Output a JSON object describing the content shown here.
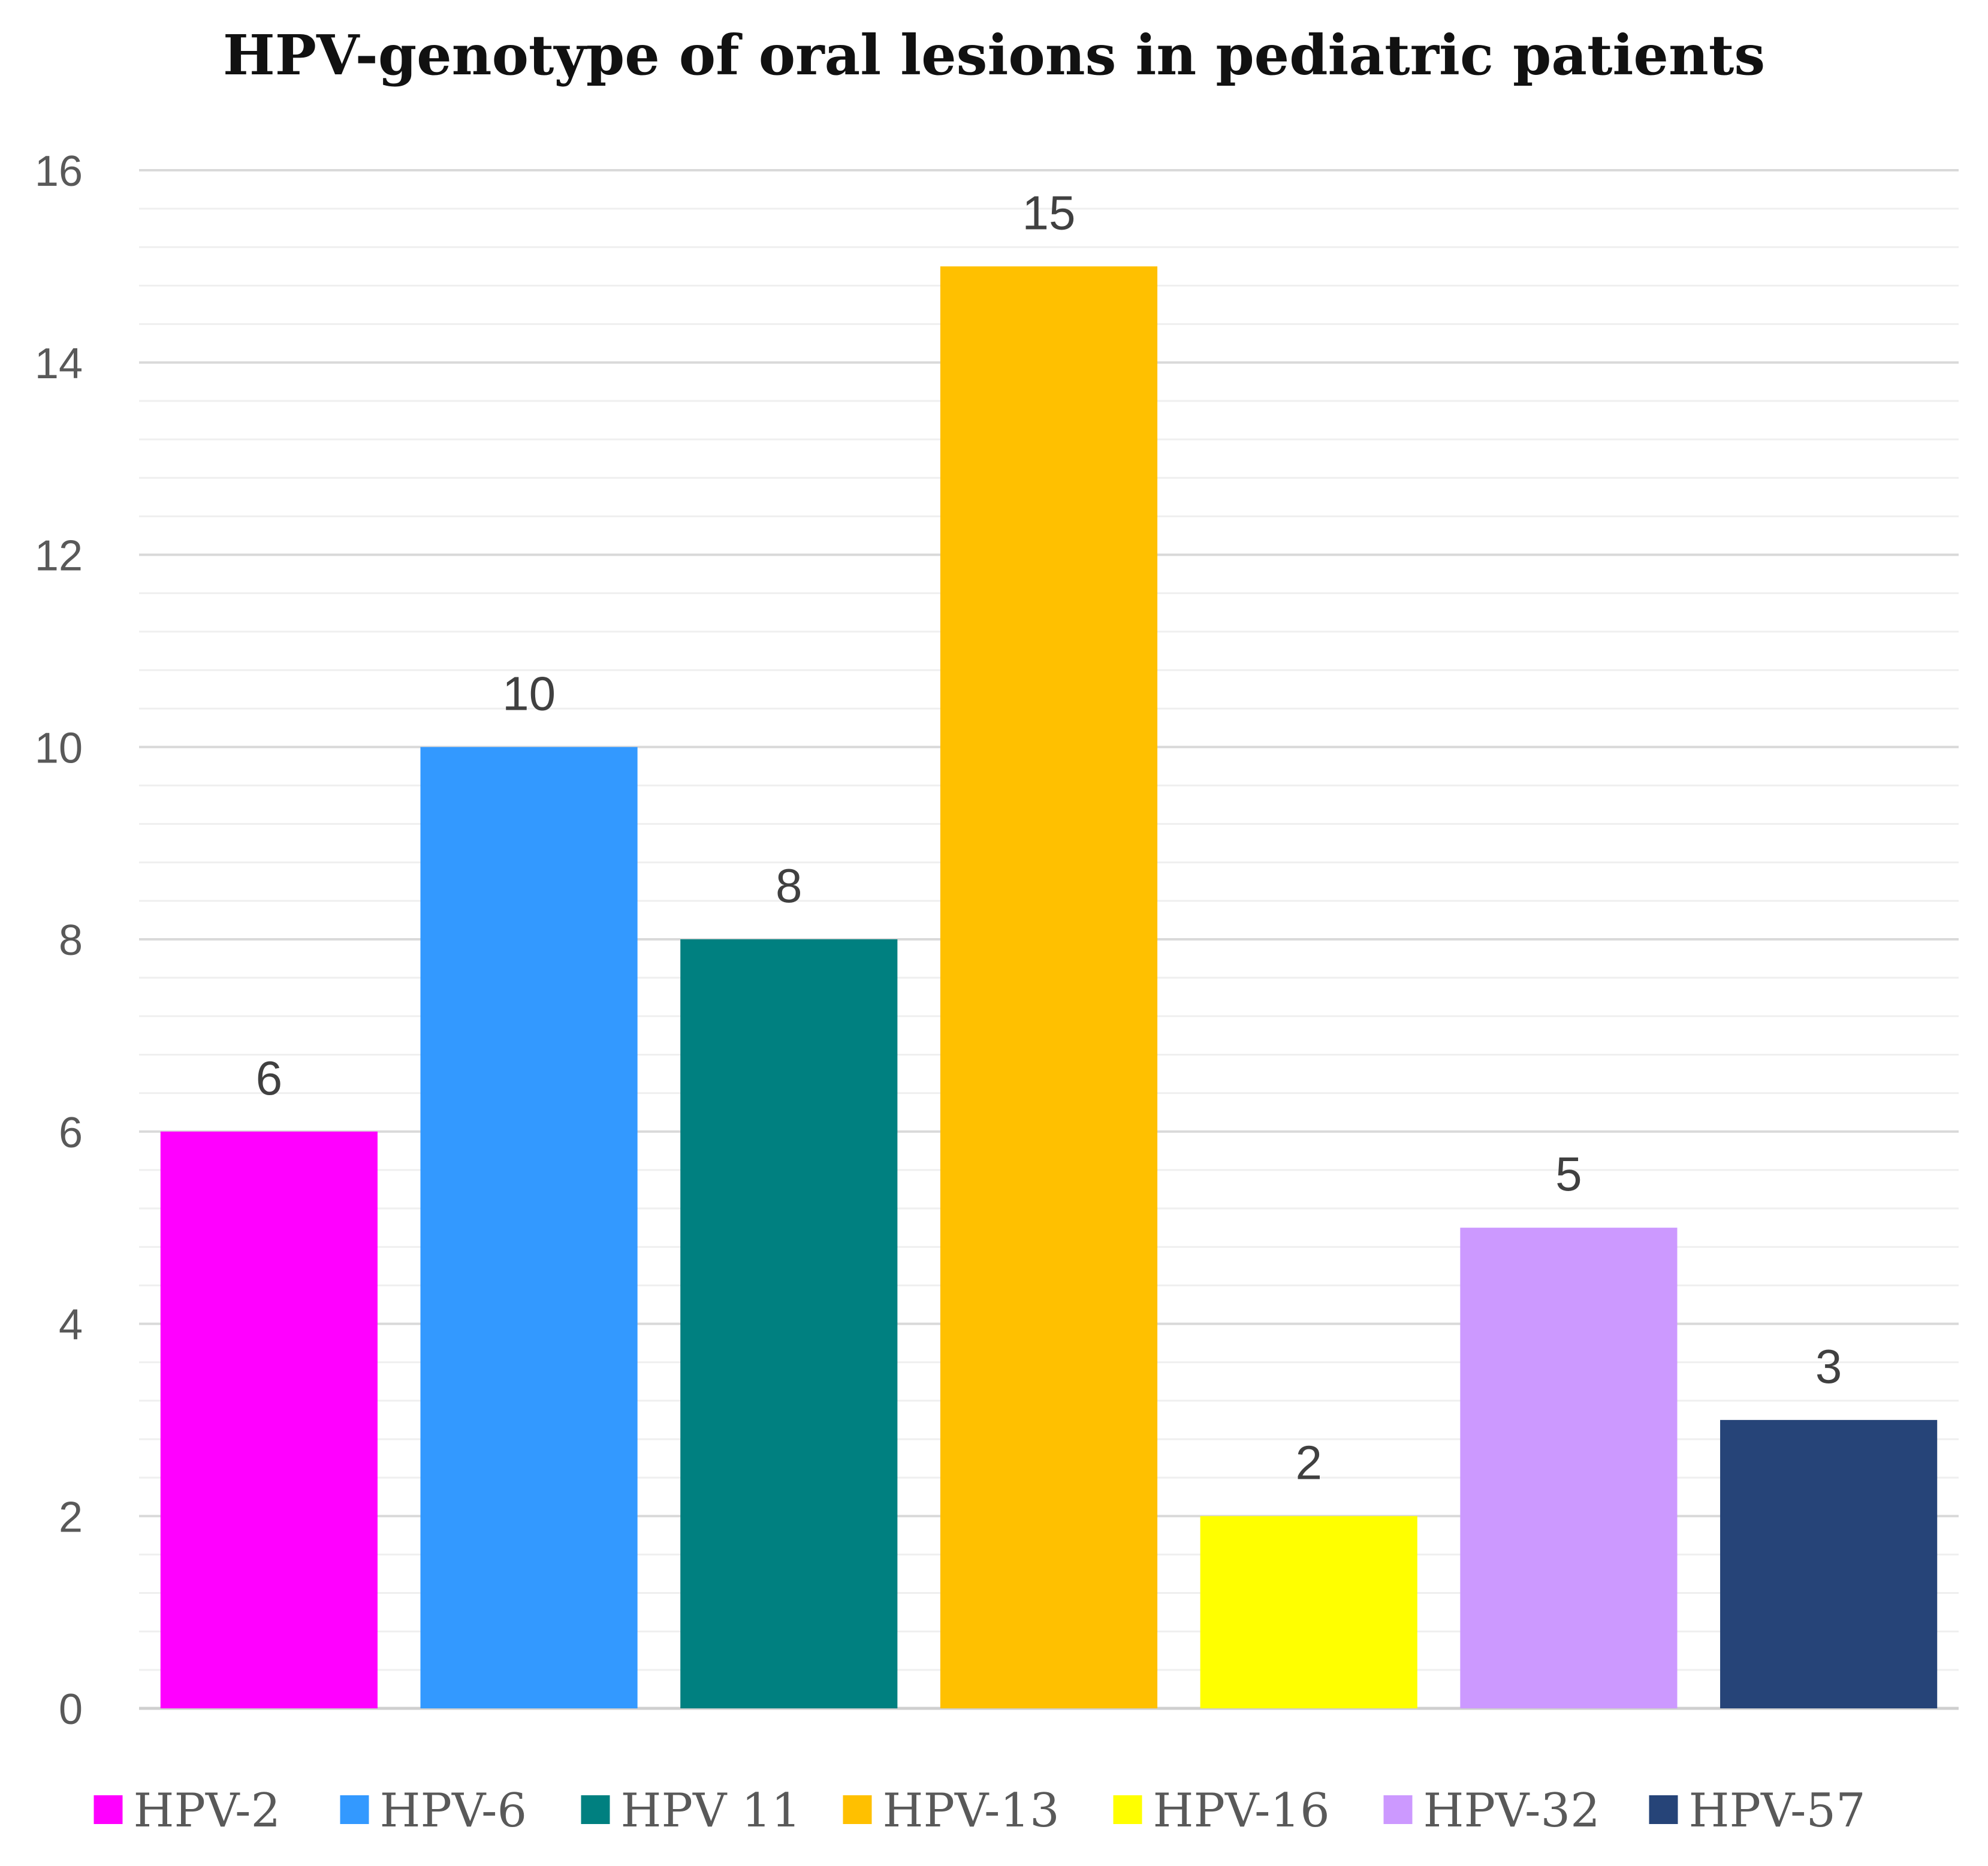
{
  "chart_data": {
    "type": "bar",
    "title": "HPV-genotype of oral lesions in pediatric patients",
    "xlabel": "",
    "ylabel": "",
    "ylim": [
      0,
      16
    ],
    "yticks": [
      0,
      2,
      4,
      6,
      8,
      10,
      12,
      14,
      16
    ],
    "minor_grid_step": 0.4,
    "grid": true,
    "legend_position": "bottom",
    "categories": [
      "HPV-2",
      "HPV-6",
      "HPV 11",
      "HPV-13",
      "HPV-16",
      "HPV-32",
      "HPV-57"
    ],
    "values": [
      6,
      10,
      8,
      15,
      2,
      5,
      3
    ],
    "colors": [
      "#ff00ff",
      "#3399ff",
      "#008080",
      "#ffc000",
      "#ffff00",
      "#cc99ff",
      "#264478"
    ],
    "data_labels": [
      "6",
      "10",
      "8",
      "15",
      "2",
      "5",
      "3"
    ],
    "legend": [
      "HPV-2",
      "HPV-6",
      "HPV 11",
      "HPV-13",
      "HPV-16",
      "HPV-32",
      "HPV-57"
    ]
  }
}
